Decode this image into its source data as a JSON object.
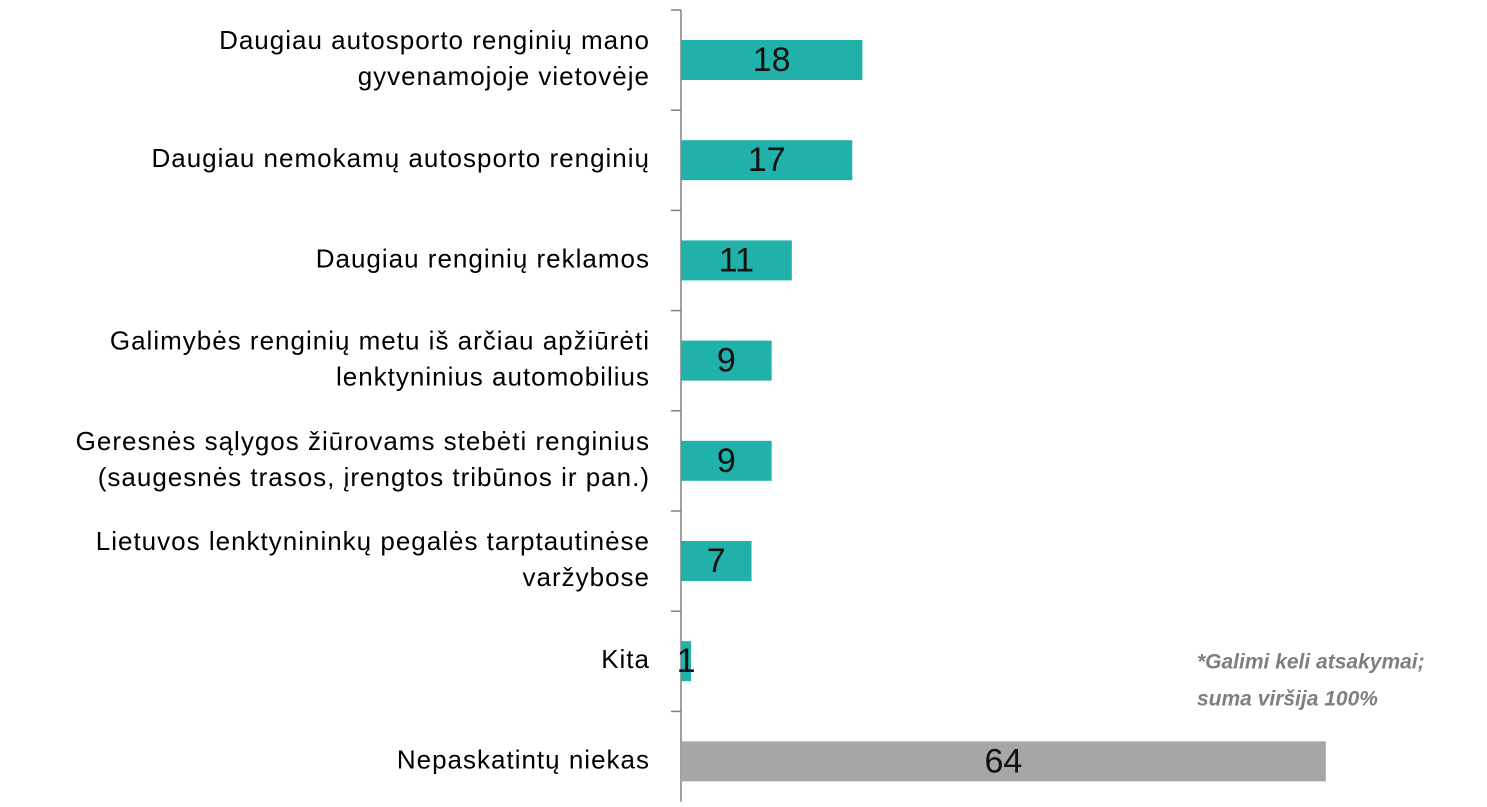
{
  "chart_data": {
    "type": "barh",
    "categories": [
      "Daugiau autosporto renginių mano\ngyvenamojoje vietovėje",
      "Daugiau nemokamų autosporto renginių",
      "Daugiau renginių reklamos",
      "Galimybės renginių metu iš arčiau apžiūrėti\nlenktyninius automobilius",
      "Geresnės sąlygos žiūrovams stebėti renginius\n(saugesnės trasos, įrengtos tribūnos ir pan.)",
      "Lietuvos lenktynininkų pegalės tarptautinėse\nvaržybose",
      "Kita",
      "Nepaskatintų niekas"
    ],
    "values": [
      18,
      17,
      11,
      9,
      9,
      7,
      1,
      64
    ],
    "colors": [
      "#20b2aa",
      "#20b2aa",
      "#20b2aa",
      "#20b2aa",
      "#20b2aa",
      "#20b2aa",
      "#20b2aa",
      "#a6a6a6"
    ],
    "xlim": [
      0,
      80
    ],
    "note": [
      "*Galimi keli atsakymai;",
      "suma viršija 100%"
    ]
  }
}
